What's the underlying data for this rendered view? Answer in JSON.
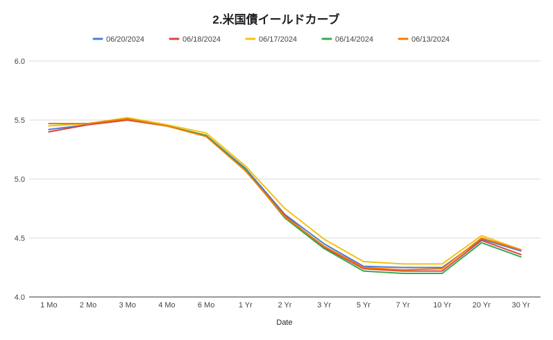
{
  "chart_data": {
    "type": "line",
    "title": "2.米国債イールドカーブ",
    "xlabel": "Date",
    "ylabel": "",
    "ylim": [
      4.0,
      6.0
    ],
    "yticks": [
      "4.0",
      "4.5",
      "5.0",
      "5.5",
      "6.0"
    ],
    "grid": true,
    "legend_position": "top",
    "categories": [
      "1 Mo",
      "2 Mo",
      "3 Mo",
      "4 Mo",
      "6 Mo",
      "1 Yr",
      "2 Yr",
      "3 Yr",
      "5 Yr",
      "7 Yr",
      "10 Yr",
      "20 Yr",
      "30 Yr"
    ],
    "series": [
      {
        "name": "06/20/2024",
        "color": "#4a7bd8",
        "values": [
          5.42,
          5.46,
          5.5,
          5.45,
          5.37,
          5.09,
          4.7,
          4.45,
          4.26,
          4.25,
          4.25,
          4.49,
          4.39
        ]
      },
      {
        "name": "06/18/2024",
        "color": "#db4437",
        "values": [
          5.4,
          5.46,
          5.5,
          5.45,
          5.37,
          5.07,
          4.69,
          4.42,
          4.24,
          4.22,
          4.22,
          4.48,
          4.36
        ]
      },
      {
        "name": "06/17/2024",
        "color": "#f4c20d",
        "values": [
          5.45,
          5.47,
          5.52,
          5.46,
          5.39,
          5.11,
          4.75,
          4.49,
          4.3,
          4.28,
          4.28,
          4.52,
          4.4
        ]
      },
      {
        "name": "06/14/2024",
        "color": "#34a853",
        "values": [
          5.47,
          5.47,
          5.51,
          5.45,
          5.37,
          5.08,
          4.67,
          4.41,
          4.22,
          4.2,
          4.2,
          4.46,
          4.34
        ]
      },
      {
        "name": "06/13/2024",
        "color": "#f57c00",
        "values": [
          5.47,
          5.47,
          5.51,
          5.45,
          5.36,
          5.07,
          4.68,
          4.43,
          4.25,
          4.23,
          4.24,
          4.5,
          4.4
        ]
      }
    ]
  }
}
